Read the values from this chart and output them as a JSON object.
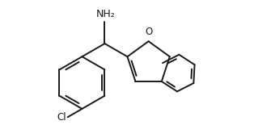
{
  "bg_color": "#ffffff",
  "line_color": "#1a1a1a",
  "line_width": 1.4,
  "font_size": 8.5,
  "NH2_label": "NH₂",
  "Cl_label": "Cl",
  "O_label": "O",
  "figsize": [
    3.14,
    1.55
  ],
  "dpi": 100
}
